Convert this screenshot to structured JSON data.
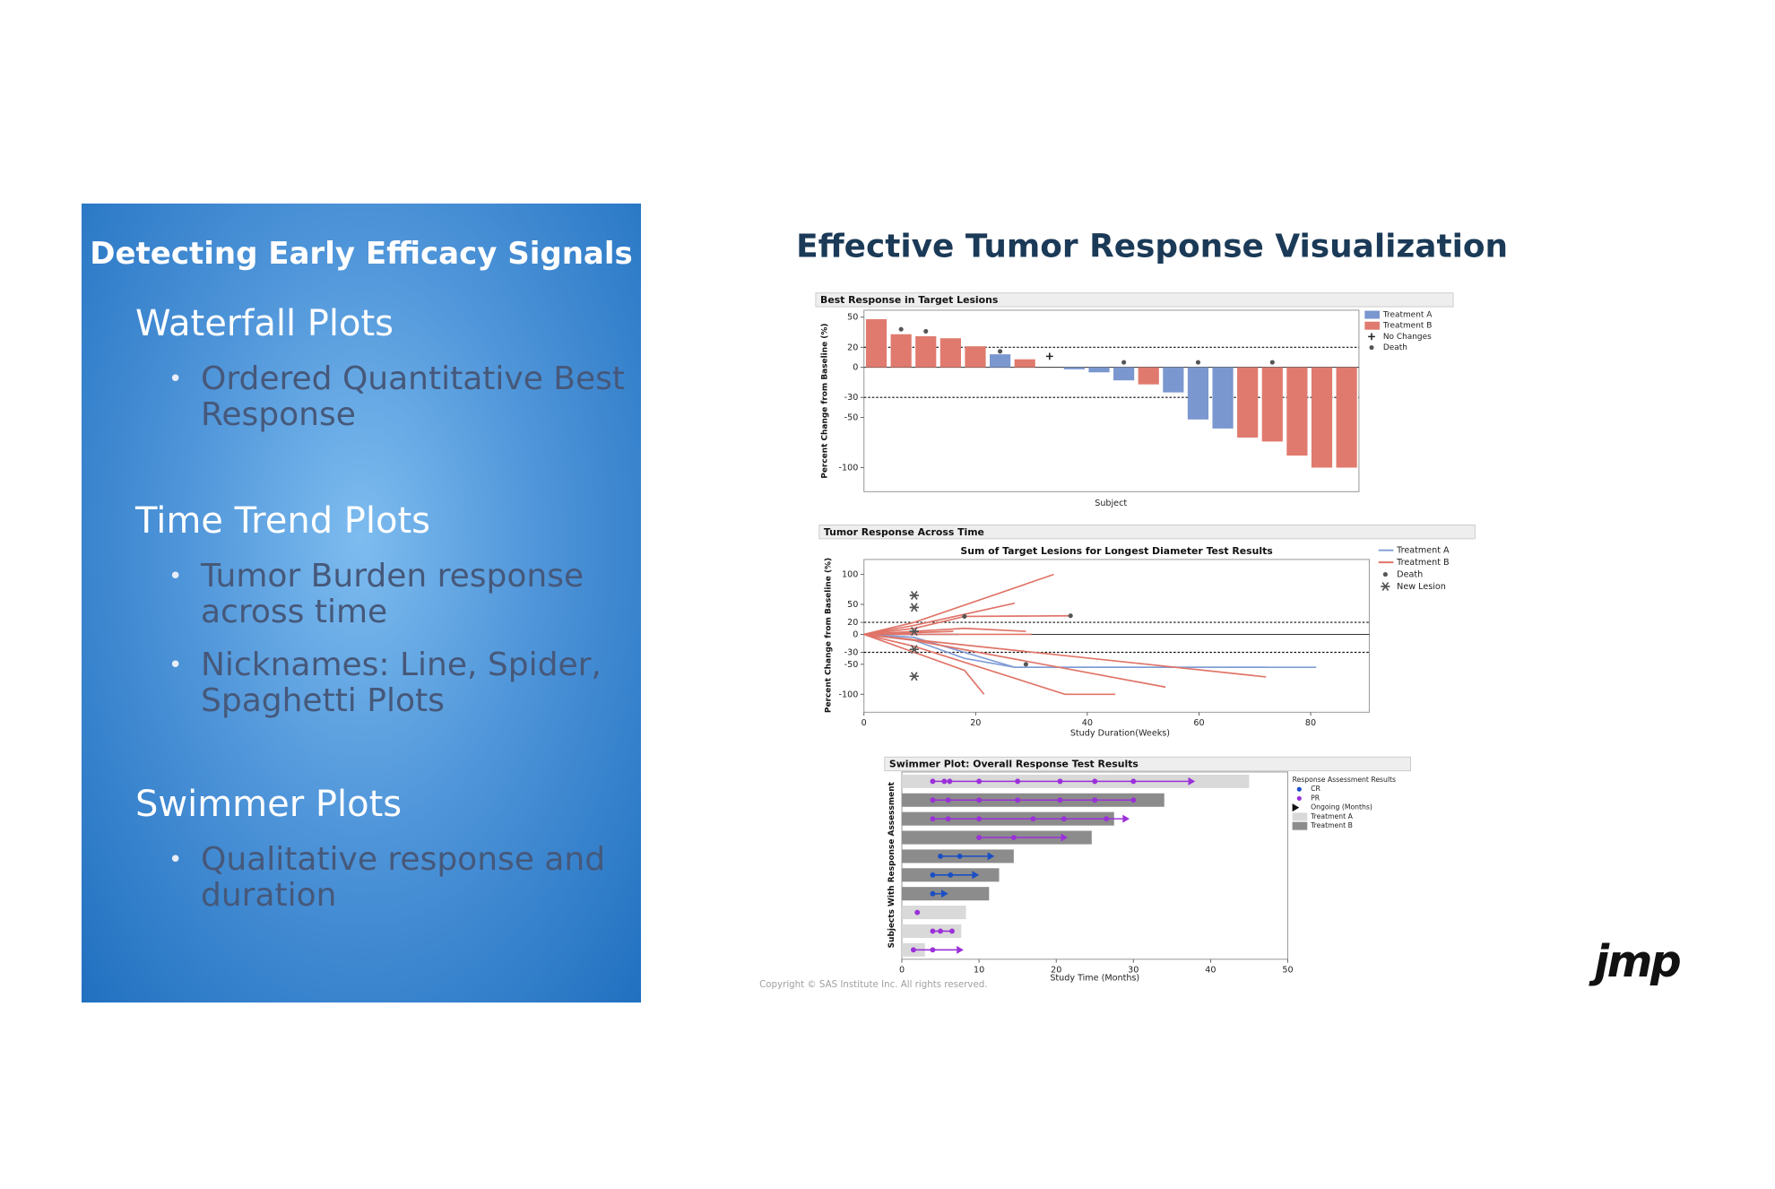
{
  "slide": {
    "panel_title": "Detecting Early Efficacy Signals",
    "sections": [
      {
        "heading": "Waterfall Plots",
        "bullets": [
          "Ordered Quantitative Best Response"
        ]
      },
      {
        "heading": "Time Trend Plots",
        "bullets": [
          "Tumor Burden response across time",
          "Nicknames: Line, Spider, Spaghetti Plots"
        ]
      },
      {
        "heading": "Swimmer Plots",
        "bullets": [
          "Qualitative response and duration"
        ]
      }
    ],
    "title": "Effective Tumor Response Visualization",
    "copyright": "Copyright © SAS Institute Inc. All rights reserved.",
    "logo": "jmp"
  },
  "chart_data": [
    {
      "type": "bar",
      "title": "Best Response in Target Lesions",
      "ylabel": "Percent Change from Baseline (%)",
      "xlabel": "Subject",
      "categories": [
        null,
        null,
        null,
        null,
        null,
        null,
        null,
        null,
        null,
        null,
        null,
        null,
        null,
        null,
        null,
        null,
        null,
        null,
        null,
        null
      ],
      "series": [
        {
          "name": "Treatment A",
          "color": "#7b97cf",
          "values": [
            null,
            null,
            null,
            null,
            null,
            13,
            null,
            null,
            -2,
            -5,
            -13,
            null,
            -25,
            -52,
            -61,
            null,
            null,
            null,
            null,
            null
          ]
        },
        {
          "name": "Treatment B",
          "color": "#e07a6e",
          "values": [
            48,
            33,
            31,
            29,
            21,
            null,
            8,
            null,
            null,
            null,
            null,
            -17,
            null,
            null,
            null,
            -70,
            -74,
            -88,
            -100,
            -100
          ]
        },
        {
          "name": "No Changes",
          "marker": "plus",
          "color": "#222222",
          "values": [
            null,
            null,
            null,
            null,
            null,
            null,
            null,
            11,
            null,
            null,
            null,
            null,
            null,
            null,
            null,
            null,
            null,
            null,
            null,
            null
          ]
        },
        {
          "name": "Death",
          "marker": "dot",
          "color": "#555555",
          "values": [
            null,
            38,
            36,
            null,
            null,
            16,
            null,
            null,
            null,
            null,
            5,
            null,
            null,
            5,
            null,
            null,
            5,
            null,
            null,
            null
          ]
        }
      ],
      "ylim": [
        -124,
        57
      ],
      "yticks": [
        50,
        20,
        0,
        -30,
        -50,
        -100
      ],
      "ref_lines": [
        20,
        -30
      ]
    },
    {
      "type": "line",
      "title": "Tumor Response Across Time",
      "subtitle": "Sum of Target Lesions for Longest Diameter Test Results",
      "ylabel": "Percent Change from Baseline (%)",
      "xlabel": "Study Duration(Weeks)",
      "series": [
        {
          "name": "Treatment A",
          "color": "#7f9dd6",
          "lines": [
            {
              "x": [
                0,
                9,
                27,
                61,
                81
              ],
              "values": [
                0,
                -5,
                -55,
                -55,
                -55
              ]
            },
            {
              "x": [
                0,
                9,
                18,
                27,
                45,
                72
              ],
              "values": [
                0,
                -10,
                -40,
                -55,
                -55,
                -55
              ]
            },
            {
              "x": [
                0,
                9,
                17
              ],
              "values": [
                0,
                0,
                0
              ]
            }
          ]
        },
        {
          "name": "Treatment B",
          "color": "#e07468",
          "lines": [
            {
              "x": [
                0,
                9,
                34
              ],
              "values": [
                0,
                20,
                100
              ]
            },
            {
              "x": [
                0,
                9,
                27
              ],
              "values": [
                0,
                15,
                52
              ]
            },
            {
              "x": [
                0,
                9,
                18,
                37
              ],
              "values": [
                0,
                10,
                30,
                31
              ]
            },
            {
              "x": [
                0,
                18,
                29
              ],
              "values": [
                0,
                10,
                5
              ]
            },
            {
              "x": [
                0,
                18,
                21.5
              ],
              "values": [
                0,
                -60,
                -100
              ]
            },
            {
              "x": [
                0,
                9,
                36,
                45
              ],
              "values": [
                0,
                -20,
                -100,
                -100
              ]
            },
            {
              "x": [
                0,
                9,
                54
              ],
              "values": [
                0,
                -10,
                -88
              ]
            },
            {
              "x": [
                0,
                72
              ],
              "values": [
                0,
                -71
              ]
            },
            {
              "x": [
                0,
                16
              ],
              "values": [
                0,
                5
              ]
            },
            {
              "x": [
                0,
                30
              ],
              "values": [
                0,
                0
              ]
            }
          ]
        },
        {
          "name": "Death",
          "marker": "dot",
          "color": "#555555",
          "x": [
            18,
            37,
            29
          ],
          "values": [
            30,
            31,
            -50
          ]
        },
        {
          "name": "New Lesion",
          "marker": "asterisk",
          "color": "#555555",
          "x": [
            9,
            9,
            9,
            9,
            9
          ],
          "values": [
            65,
            45,
            5,
            -25,
            -70
          ]
        }
      ],
      "xlim": [
        0,
        90.5
      ],
      "xticks": [
        0,
        20,
        40,
        60,
        80
      ],
      "ylim": [
        -130,
        125
      ],
      "yticks": [
        100,
        50,
        20,
        0,
        -30,
        -50,
        -100
      ],
      "ref_lines": [
        20,
        -30
      ]
    },
    {
      "type": "swimmer",
      "title": "Swimmer Plot: Overall Response Test Results",
      "ylabel": "Subjects With Response Assessment",
      "xlabel": "Study Time (Months)",
      "legend_title": "Response Assessment Results",
      "categories": [
        null,
        null,
        null,
        null,
        null,
        null,
        null,
        null,
        null,
        null
      ],
      "series": [
        {
          "name": "Treatment A",
          "color": "#d9d9d9",
          "values": [
            45,
            null,
            null,
            null,
            null,
            null,
            null,
            8.3,
            7.7,
            3
          ]
        },
        {
          "name": "Treatment B",
          "color": "#8c8c8c",
          "values": [
            null,
            34,
            27.5,
            24.6,
            14.5,
            12.6,
            11.3,
            null,
            null,
            null
          ]
        }
      ],
      "markers": [
        {
          "name": "CR",
          "marker": "dot",
          "color": "#1a4fc4",
          "values": [
            [],
            [],
            [],
            [],
            [
              5,
              7.5
            ],
            [
              4,
              6.3
            ],
            [
              4
            ],
            [],
            [],
            []
          ]
        },
        {
          "name": "PR",
          "marker": "dot",
          "color": "#9b30d9",
          "values": [
            [
              4,
              5.5,
              6.2,
              10,
              15,
              20.5,
              25,
              30
            ],
            [
              4,
              6,
              10,
              15,
              20.5,
              25,
              30
            ],
            [
              4,
              6,
              10,
              17,
              21,
              26.5
            ],
            [
              10,
              14.5
            ],
            [],
            [],
            [],
            [
              2
            ],
            [
              4,
              5,
              6.5
            ],
            [
              1.5,
              4
            ]
          ]
        },
        {
          "name": "Ongoing (Months)",
          "marker": "arrow",
          "color": "#111111",
          "values": [
            38,
            null,
            29.5,
            21.5,
            12,
            10,
            6,
            null,
            null,
            8
          ]
        }
      ],
      "xlim": [
        0,
        50
      ],
      "xticks": [
        0,
        10,
        20,
        30,
        40,
        50
      ]
    }
  ]
}
